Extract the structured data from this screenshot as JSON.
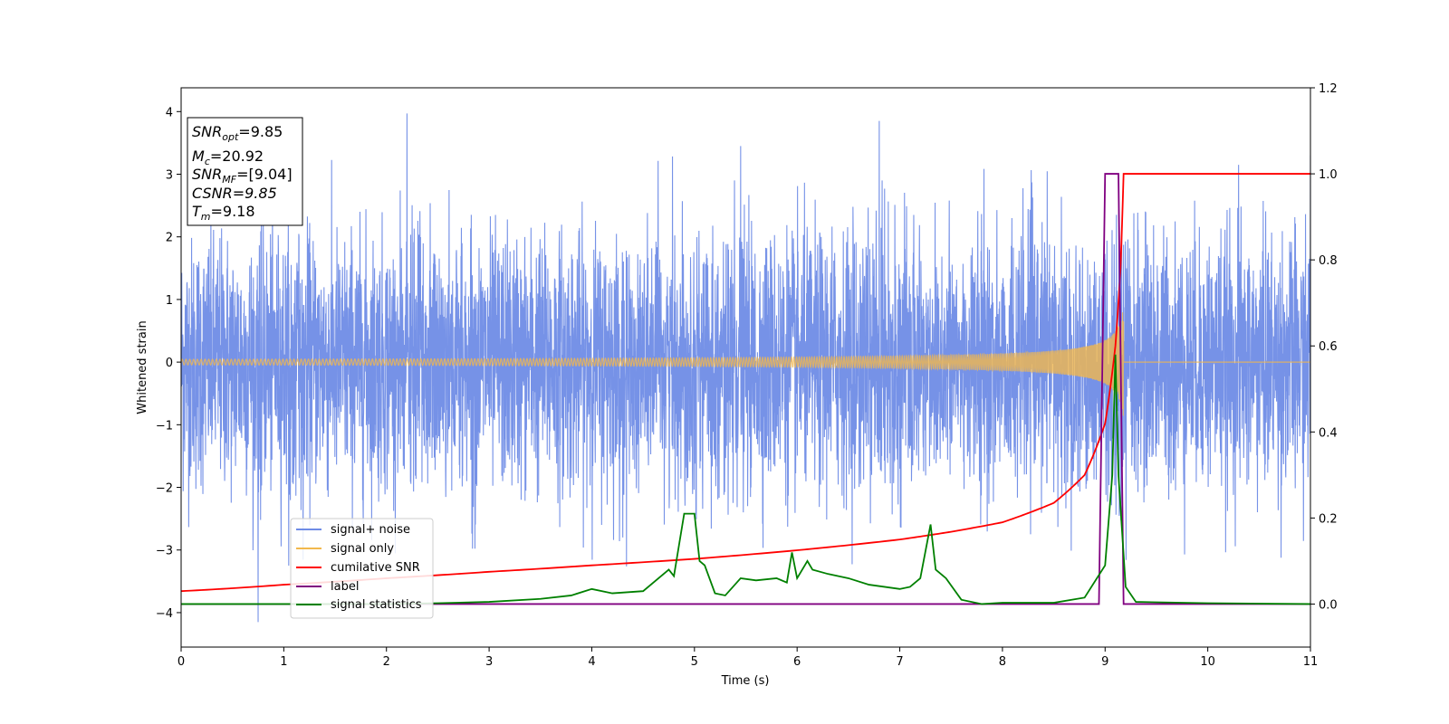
{
  "chart_data": {
    "type": "line",
    "title": "",
    "xlabel": "Time (s)",
    "ylabel_left": "Whitened strain",
    "ylabel_right": "",
    "xlim": [
      0,
      11
    ],
    "ylim_left": [
      -4.55,
      4.38
    ],
    "ylim_right": [
      -0.1,
      1.2
    ],
    "x_ticks": [
      "0",
      "1",
      "2",
      "3",
      "4",
      "5",
      "6",
      "7",
      "8",
      "9",
      "10",
      "11"
    ],
    "y_ticks_left": [
      "−4",
      "−3",
      "−2",
      "−1",
      "0",
      "1",
      "2",
      "3",
      "4"
    ],
    "y_ticks_right": [
      "0.0",
      "0.2",
      "0.4",
      "0.6",
      "0.8",
      "1.0",
      "1.2"
    ],
    "grid": false,
    "legend_position": "lower-left",
    "colors": {
      "noise": "#6f8ce6",
      "signal": "#f2b84d",
      "csnr": "#ff0000",
      "label": "#800080",
      "stat": "#008000"
    },
    "info_box": {
      "snr_opt_main": "SNR",
      "snr_opt_sub": "opt",
      "snr_opt_value": "=9.85",
      "mc_main": "M",
      "mc_sub": "c",
      "mc_value": "=20.92",
      "snr_mf_main": "SNR",
      "snr_mf_sub": "MF",
      "snr_mf_value": "=[9.04]",
      "csnr_text": "CSNR=9.85",
      "tm_main": "T",
      "tm_sub": "m",
      "tm_value": "=9.18"
    },
    "series": [
      {
        "name": "signal+ noise",
        "axis": "left",
        "description_values": "whitened gaussian noise, mostly within ±2.5, peaks near 4",
        "extremes": [
          {
            "x": 0.75,
            "y": -4.15
          },
          {
            "x": 2.2,
            "y": 3.97
          },
          {
            "x": 5.45,
            "y": 3.45
          },
          {
            "x": 6.8,
            "y": 3.85
          },
          {
            "x": 10.3,
            "y": 3.15
          },
          {
            "x": 11.0,
            "y": 3.3
          }
        ]
      },
      {
        "name": "signal only",
        "axis": "left",
        "merger_time": 9.18,
        "peak_amplitude": 0.9
      },
      {
        "name": "cumilative SNR",
        "axis": "right",
        "x": [
          0,
          1,
          2,
          3,
          4,
          5,
          6,
          7,
          7.5,
          8,
          8.5,
          8.8,
          9.0,
          9.1,
          9.15,
          9.18,
          11
        ],
        "y": [
          0.03,
          0.045,
          0.06,
          0.075,
          0.09,
          0.105,
          0.125,
          0.15,
          0.168,
          0.19,
          0.235,
          0.3,
          0.42,
          0.6,
          0.78,
          1.0,
          1.0
        ]
      },
      {
        "name": "label",
        "axis": "right",
        "x": [
          0,
          8.94,
          9.0,
          9.13,
          9.18,
          11
        ],
        "y": [
          0,
          0,
          1,
          1,
          0,
          0
        ]
      },
      {
        "name": "signal statistics",
        "axis": "right",
        "x": [
          0,
          1,
          2,
          2.5,
          3,
          3.5,
          3.8,
          4.0,
          4.2,
          4.5,
          4.75,
          4.8,
          4.9,
          5.0,
          5.05,
          5.1,
          5.2,
          5.3,
          5.45,
          5.6,
          5.8,
          5.9,
          5.95,
          6.0,
          6.1,
          6.15,
          6.3,
          6.5,
          6.7,
          7.0,
          7.1,
          7.2,
          7.3,
          7.35,
          7.45,
          7.6,
          7.8,
          8.0,
          8.5,
          8.8,
          9.0,
          9.07,
          9.1,
          9.13,
          9.2,
          9.3,
          10,
          11
        ],
        "y": [
          0.0,
          0.0,
          0.0,
          0.002,
          0.005,
          0.012,
          0.02,
          0.035,
          0.025,
          0.03,
          0.08,
          0.065,
          0.21,
          0.21,
          0.1,
          0.09,
          0.025,
          0.02,
          0.06,
          0.055,
          0.06,
          0.05,
          0.12,
          0.06,
          0.1,
          0.08,
          0.07,
          0.06,
          0.045,
          0.035,
          0.04,
          0.06,
          0.185,
          0.08,
          0.06,
          0.01,
          0.0,
          0.003,
          0.003,
          0.015,
          0.09,
          0.3,
          0.58,
          0.3,
          0.04,
          0.005,
          0.002,
          0.0
        ]
      }
    ]
  }
}
